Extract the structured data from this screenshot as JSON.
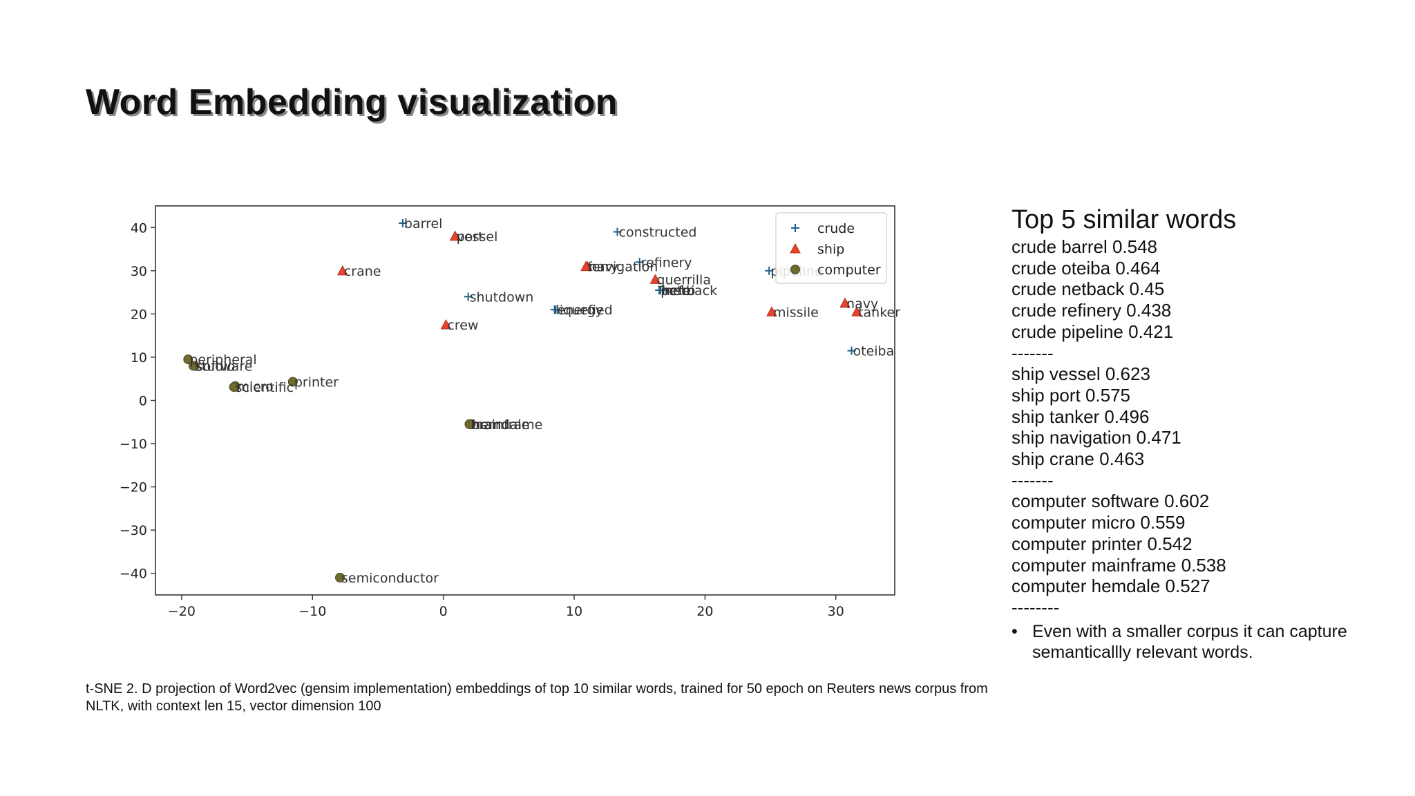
{
  "title": "Word Embedding visualization",
  "caption": "t-SNE 2. D projection of Word2vec (gensim implementation) embeddings of top 10 similar words, trained for 50 epoch on Reuters news corpus from NLTK, with context  len 15, vector dimension 100",
  "side_panel": {
    "heading": "Top 5 similar words",
    "lines": [
      "crude barrel 0.548",
      "crude oteiba 0.464",
      "crude netback 0.45",
      "crude refinery 0.438",
      "crude pipeline 0.421",
      "-------",
      "ship vessel 0.623",
      "ship port 0.575",
      "ship tanker 0.496",
      "ship navigation 0.471",
      "ship crane 0.463",
      "-------",
      "computer software 0.602",
      "computer micro 0.559",
      "computer printer 0.542",
      "computer mainframe 0.538",
      "computer hemdale 0.527",
      "--------"
    ],
    "note": "Even with a smaller corpus it can capture semanticallly relevant words."
  },
  "chart_data": {
    "type": "scatter",
    "xlim": [
      -22,
      34.5
    ],
    "ylim": [
      -45,
      45
    ],
    "xticks": [
      -20,
      -10,
      0,
      10,
      20,
      30
    ],
    "yticks": [
      40,
      30,
      20,
      10,
      0,
      -10,
      -20,
      -30,
      -40
    ],
    "grid": false,
    "legend": "top-right",
    "series": [
      {
        "name": "crude",
        "marker": "plus",
        "color": "#1f5f8b",
        "points": [
          {
            "word": "barrel",
            "x": -3.1,
            "y": 41
          },
          {
            "word": "constructed",
            "x": 13.3,
            "y": 39
          },
          {
            "word": "refinery",
            "x": 15.0,
            "y": 32
          },
          {
            "word": "shutdown",
            "x": 1.9,
            "y": 24
          },
          {
            "word": "liquefied",
            "x": 8.5,
            "y": 21
          },
          {
            "word": "energy",
            "x": 8.6,
            "y": 21
          },
          {
            "word": "netback",
            "x": 16.8,
            "y": 25.5
          },
          {
            "word": "hefei",
            "x": 16.6,
            "y": 25.5
          },
          {
            "word": "petro",
            "x": 16.5,
            "y": 25.5
          },
          {
            "word": "pipeline",
            "x": 24.9,
            "y": 30
          },
          {
            "word": "oteiba",
            "x": 31.2,
            "y": 11.5
          }
        ]
      },
      {
        "name": "ship",
        "marker": "triangle",
        "color": "#e8432a",
        "points": [
          {
            "word": "vessel",
            "x": 0.9,
            "y": 38
          },
          {
            "word": "port",
            "x": 0.9,
            "y": 38
          },
          {
            "word": "crane",
            "x": -7.7,
            "y": 30
          },
          {
            "word": "navigation",
            "x": 11.0,
            "y": 31
          },
          {
            "word": "ferry",
            "x": 10.9,
            "y": 31
          },
          {
            "word": "guerrilla",
            "x": 16.2,
            "y": 28
          },
          {
            "word": "crew",
            "x": 0.2,
            "y": 17.5
          },
          {
            "word": "missile",
            "x": 25.1,
            "y": 20.5
          },
          {
            "word": "navy",
            "x": 30.7,
            "y": 22.5
          },
          {
            "word": "tanker",
            "x": 31.6,
            "y": 20.5
          }
        ]
      },
      {
        "name": "computer",
        "marker": "circle",
        "color": "#6f6a2e",
        "points": [
          {
            "word": "peripheral",
            "x": -19.5,
            "y": 9.5
          },
          {
            "word": "software",
            "x": -19.0,
            "y": 8
          },
          {
            "word": "studio",
            "x": -19.1,
            "y": 8
          },
          {
            "word": "micro",
            "x": -15.9,
            "y": 3.3
          },
          {
            "word": "scientific",
            "x": -16.0,
            "y": 3.1
          },
          {
            "word": "printer",
            "x": -11.5,
            "y": 4.3
          },
          {
            "word": "mainframe",
            "x": 2.0,
            "y": -5.5
          },
          {
            "word": "hemdale",
            "x": 2.1,
            "y": -5.5
          },
          {
            "word": "brand",
            "x": 2.0,
            "y": -5.5
          },
          {
            "word": "semiconductor",
            "x": -7.9,
            "y": -41
          }
        ]
      }
    ]
  }
}
